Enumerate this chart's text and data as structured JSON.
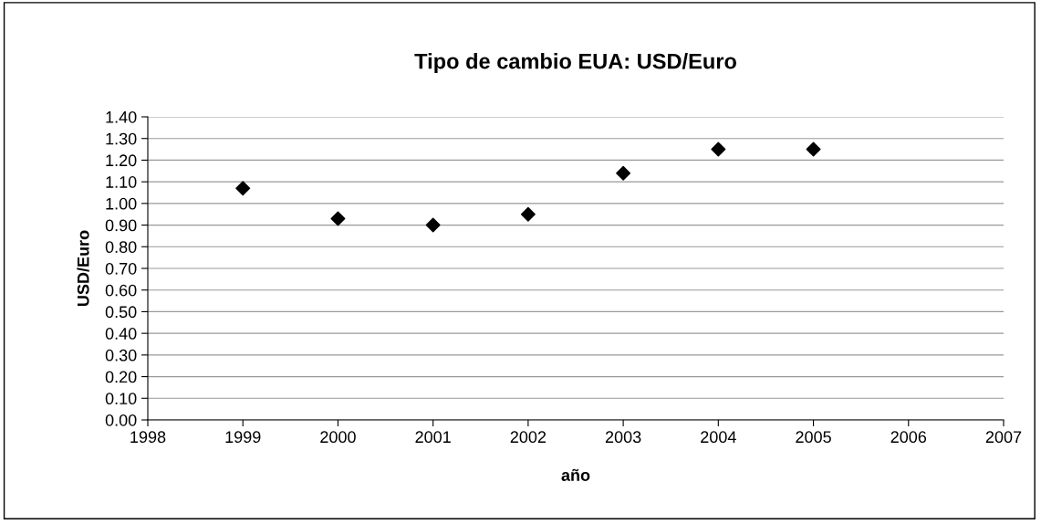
{
  "chart_data": {
    "type": "scatter",
    "title": "Tipo de cambio EUA: USD/Euro",
    "xlabel": "año",
    "ylabel": "USD/Euro",
    "x": [
      1999,
      2000,
      2001,
      2002,
      2003,
      2004,
      2005
    ],
    "series": [
      {
        "color": "#000000",
        "values": [
          1.07,
          0.93,
          0.9,
          0.95,
          1.14,
          1.25,
          1.25
        ]
      }
    ],
    "marker": "diamond",
    "xlim": [
      1998,
      2007
    ],
    "xticks": [
      1998,
      1999,
      2000,
      2001,
      2002,
      2003,
      2004,
      2005,
      2006,
      2007
    ],
    "ylim": [
      0,
      1.4
    ],
    "yticks": [
      {
        "value": 0,
        "label": "0.00"
      },
      {
        "value": 0.1,
        "label": "0.10"
      },
      {
        "value": 0.2,
        "label": "0.20"
      },
      {
        "value": 0.3,
        "label": "0.30"
      },
      {
        "value": 0.4,
        "label": "0.40"
      },
      {
        "value": 0.5,
        "label": "0.50"
      },
      {
        "value": 0.6,
        "label": "0.60"
      },
      {
        "value": 0.7,
        "label": "0.70"
      },
      {
        "value": 0.8,
        "label": "0.80"
      },
      {
        "value": 0.9,
        "label": "0.90"
      },
      {
        "value": 1.0,
        "label": "1.00"
      },
      {
        "value": 1.1,
        "label": "1.10"
      },
      {
        "value": 1.2,
        "label": "1.20"
      },
      {
        "value": 1.3,
        "label": "1.30"
      },
      {
        "value": 1.4,
        "label": "1.40"
      }
    ],
    "grid": "y",
    "legend": false
  }
}
